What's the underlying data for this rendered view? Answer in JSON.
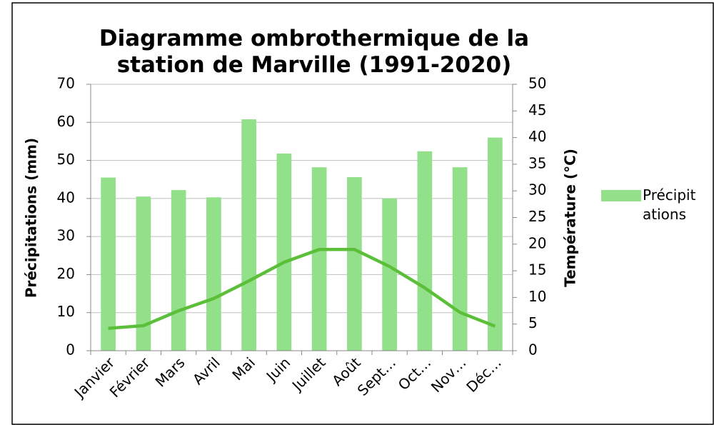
{
  "chart_data": {
    "type": "bar_line",
    "title": "Diagramme ombrothermique de la station de Marville (1991-2020)",
    "y_label": "Précipitations (mm)",
    "y2_label": "Température (°C)",
    "categories": [
      "Janvier",
      "Février",
      "Mars",
      "Avril",
      "Mai",
      "Juin",
      "Juillet",
      "Août",
      "Sept…",
      "Oct…",
      "Nov…",
      "Déc…"
    ],
    "series": [
      {
        "name": "Précipitations",
        "type": "bar",
        "color": "#92e08a",
        "values": [
          45.5,
          40.5,
          42.2,
          40.3,
          60.8,
          51.8,
          48.2,
          45.6,
          40,
          52.4,
          48.2,
          56
        ]
      },
      {
        "type": "line",
        "axis": "y2",
        "color": "#5cbf3a",
        "values": [
          4.2,
          4.7,
          7.5,
          9.8,
          13.1,
          16.6,
          19,
          19,
          15.8,
          11.8,
          7.2,
          4.6
        ]
      }
    ],
    "ylim": [
      0,
      70
    ],
    "yticks": [
      0,
      10,
      20,
      30,
      40,
      50,
      60,
      70
    ],
    "y2lim": [
      0,
      50
    ],
    "y2ticks": [
      0,
      5,
      10,
      15,
      20,
      25,
      30,
      35,
      40,
      45,
      50
    ],
    "grid": true,
    "legend": "right"
  }
}
